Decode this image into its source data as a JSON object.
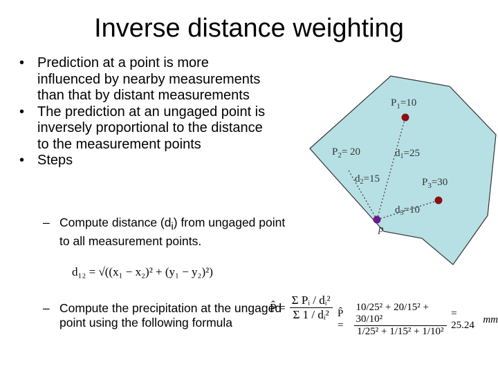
{
  "title": "Inverse distance weighting",
  "bullets": [
    "Prediction at a point is more influenced by nearby measurements than that by distant measurements",
    "The prediction at an ungaged point is inversely proportional to the distance to the measurement points",
    "Steps"
  ],
  "steps": [
    {
      "before": "Compute distance (d",
      "sub": "i",
      "after": ") from ungaged point to all measurement points."
    },
    {
      "text": "Compute  the precipitation at the ungaged point using the following formula"
    }
  ],
  "diagram": {
    "points": [
      {
        "name": "P",
        "sub": "1",
        "tail": "=10"
      },
      {
        "name": "P",
        "sub": "2",
        "tail": "= 20"
      },
      {
        "name": "P",
        "sub": "3",
        "tail": "=30"
      }
    ],
    "distances": [
      {
        "name": "d",
        "sub": "1",
        "tail": "=25"
      },
      {
        "name": "d",
        "sub": "2",
        "tail": "=15"
      },
      {
        "name": "d",
        "sub": "3",
        "tail": "=10"
      }
    ],
    "target": "p"
  },
  "formulas": {
    "distance": "d₁₂ = √((x₁ − x₂)² + (y₁ − y₂)²)",
    "general": {
      "lhs": "P̂ =",
      "numerator": "Σ Pᵢ / dᵢ²",
      "denominator": "Σ 1 / dᵢ²"
    },
    "numeric": {
      "lhs": "P̂ =",
      "numerator": "10/25² + 20/15² + 30/10²",
      "denominator": "1/25² + 1/15² + 1/10²",
      "result": "= 25.24",
      "unit": "mm"
    }
  }
}
